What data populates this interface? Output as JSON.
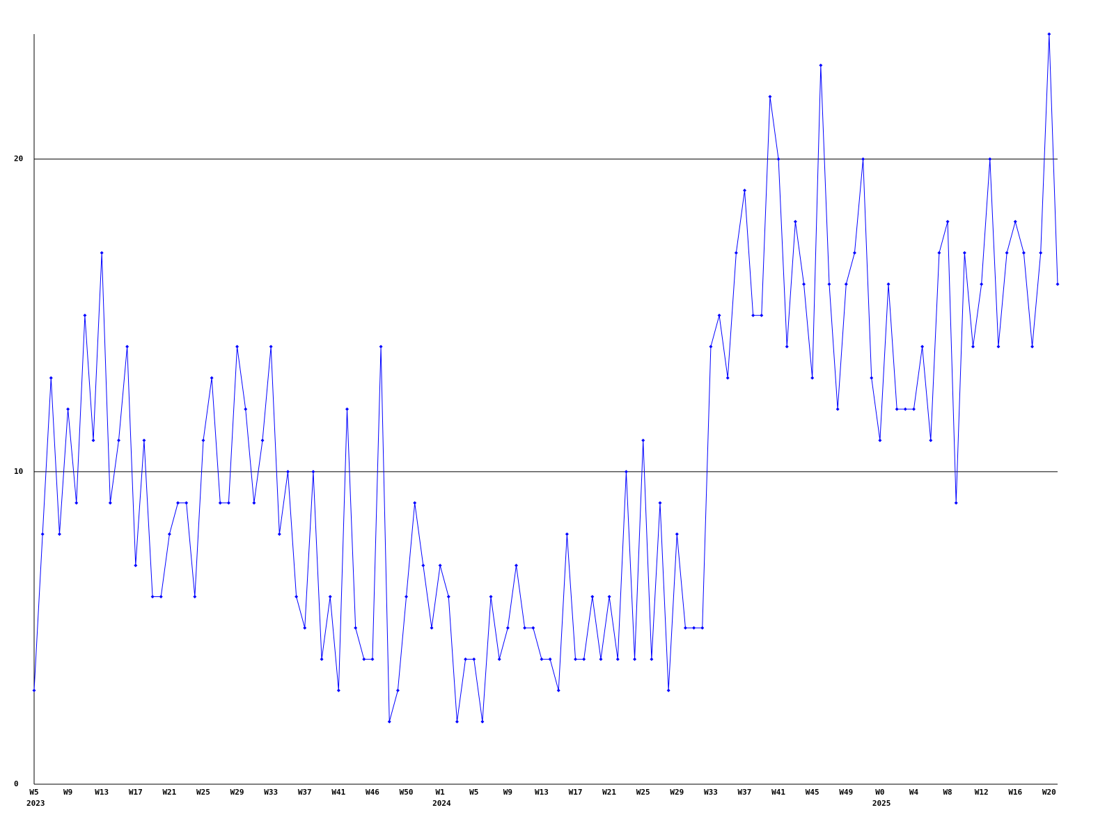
{
  "chart_data": {
    "type": "line",
    "categories": [
      "W5",
      null,
      null,
      null,
      "W9",
      null,
      null,
      null,
      "W13",
      null,
      null,
      null,
      "W17",
      null,
      null,
      null,
      "W21",
      null,
      null,
      null,
      "W25",
      null,
      null,
      null,
      "W29",
      null,
      null,
      null,
      "W33",
      null,
      null,
      null,
      "W37",
      null,
      null,
      null,
      "W41",
      null,
      null,
      null,
      "W46",
      null,
      null,
      null,
      "W50",
      null,
      null,
      null,
      "W1",
      null,
      null,
      null,
      "W5",
      null,
      null,
      null,
      "W9",
      null,
      null,
      null,
      "W13",
      null,
      null,
      null,
      "W17",
      null,
      null,
      null,
      "W21",
      null,
      null,
      null,
      "W25",
      null,
      null,
      null,
      "W29",
      null,
      null,
      null,
      "W33",
      null,
      null,
      null,
      "W37",
      null,
      null,
      null,
      "W41",
      null,
      null,
      null,
      "W45",
      null,
      null,
      null,
      "W49",
      null,
      null,
      null,
      "W0",
      null,
      null,
      null,
      "W4",
      null,
      null,
      null,
      "W8",
      null,
      null,
      null,
      "W12",
      null,
      null,
      null,
      "W16",
      null,
      null,
      null,
      "W20",
      null
    ],
    "years": [
      "2023",
      null,
      null,
      null,
      null,
      null,
      null,
      null,
      null,
      null,
      null,
      null,
      null,
      null,
      null,
      null,
      null,
      null,
      null,
      null,
      null,
      null,
      null,
      null,
      null,
      null,
      null,
      null,
      null,
      null,
      null,
      null,
      null,
      null,
      null,
      null,
      null,
      null,
      null,
      null,
      null,
      null,
      null,
      null,
      null,
      null,
      null,
      null,
      "2024",
      null,
      null,
      null,
      null,
      null,
      null,
      null,
      null,
      null,
      null,
      null,
      null,
      null,
      null,
      null,
      null,
      null,
      null,
      null,
      null,
      null,
      null,
      null,
      null,
      null,
      null,
      null,
      null,
      null,
      null,
      null,
      null,
      null,
      null,
      null,
      null,
      null,
      null,
      null,
      null,
      null,
      null,
      null,
      null,
      null,
      null,
      null,
      null,
      null,
      null,
      null,
      "2025",
      null,
      null,
      null,
      null,
      null,
      null,
      null,
      null,
      null,
      null,
      null,
      null,
      null,
      null,
      null,
      null,
      null,
      null,
      null,
      null
    ],
    "values": [
      3,
      8,
      13,
      8,
      12,
      9,
      15,
      11,
      17,
      9,
      11,
      14,
      7,
      11,
      6,
      6,
      8,
      9,
      9,
      6,
      11,
      13,
      9,
      9,
      14,
      12,
      9,
      11,
      14,
      8,
      10,
      6,
      5,
      10,
      4,
      6,
      3,
      12,
      5,
      4,
      4,
      14,
      2,
      3,
      6,
      9,
      7,
      5,
      7,
      6,
      2,
      4,
      4,
      2,
      6,
      4,
      5,
      7,
      5,
      5,
      4,
      4,
      3,
      8,
      4,
      4,
      6,
      4,
      6,
      4,
      10,
      4,
      11,
      4,
      9,
      3,
      8,
      5,
      5,
      5,
      14,
      15,
      13,
      17,
      19,
      15,
      15,
      22,
      20,
      14,
      18,
      16,
      13,
      23,
      16,
      12,
      16,
      17,
      20,
      13,
      11,
      16,
      12,
      12,
      12,
      14,
      11,
      17,
      18,
      9,
      17,
      14,
      16,
      20,
      14,
      17,
      18,
      17,
      14,
      17,
      24,
      16
    ],
    "color": "#0000ff",
    "ylim": [
      0,
      24
    ],
    "yticks": [
      0,
      10,
      20
    ],
    "grid": true
  }
}
